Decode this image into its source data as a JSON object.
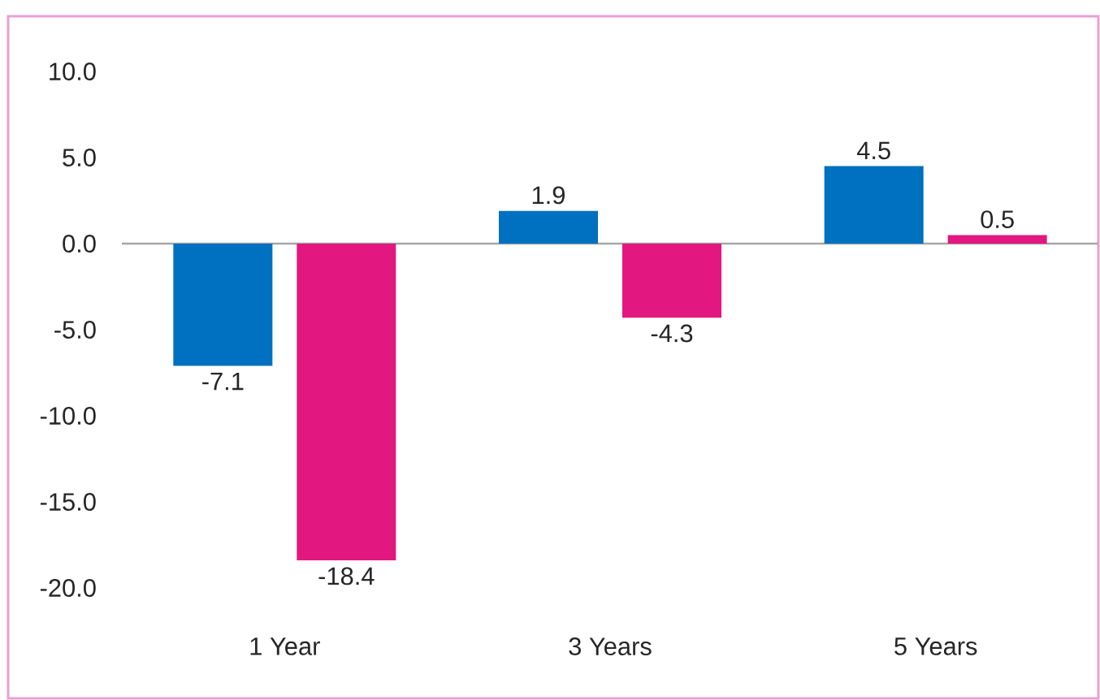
{
  "chart_data": {
    "type": "bar",
    "categories": [
      "1 Year",
      "3 Years",
      "5 Years"
    ],
    "series": [
      {
        "color": "#0070c0",
        "values": [
          -7.1,
          1.9,
          4.5
        ]
      },
      {
        "color": "#e2177f",
        "values": [
          -18.4,
          -4.3,
          0.5
        ]
      }
    ],
    "ylim": [
      -20,
      10
    ],
    "yticks": [
      {
        "value": -20,
        "label": "-20.0"
      },
      {
        "value": -15,
        "label": "-15.0"
      },
      {
        "value": -10,
        "label": "-10.0"
      },
      {
        "value": -5,
        "label": "-5.0"
      },
      {
        "value": 0,
        "label": "0.0"
      },
      {
        "value": 5,
        "label": "5.0"
      },
      {
        "value": 10,
        "label": "10.0"
      }
    ],
    "data_labels": true
  }
}
